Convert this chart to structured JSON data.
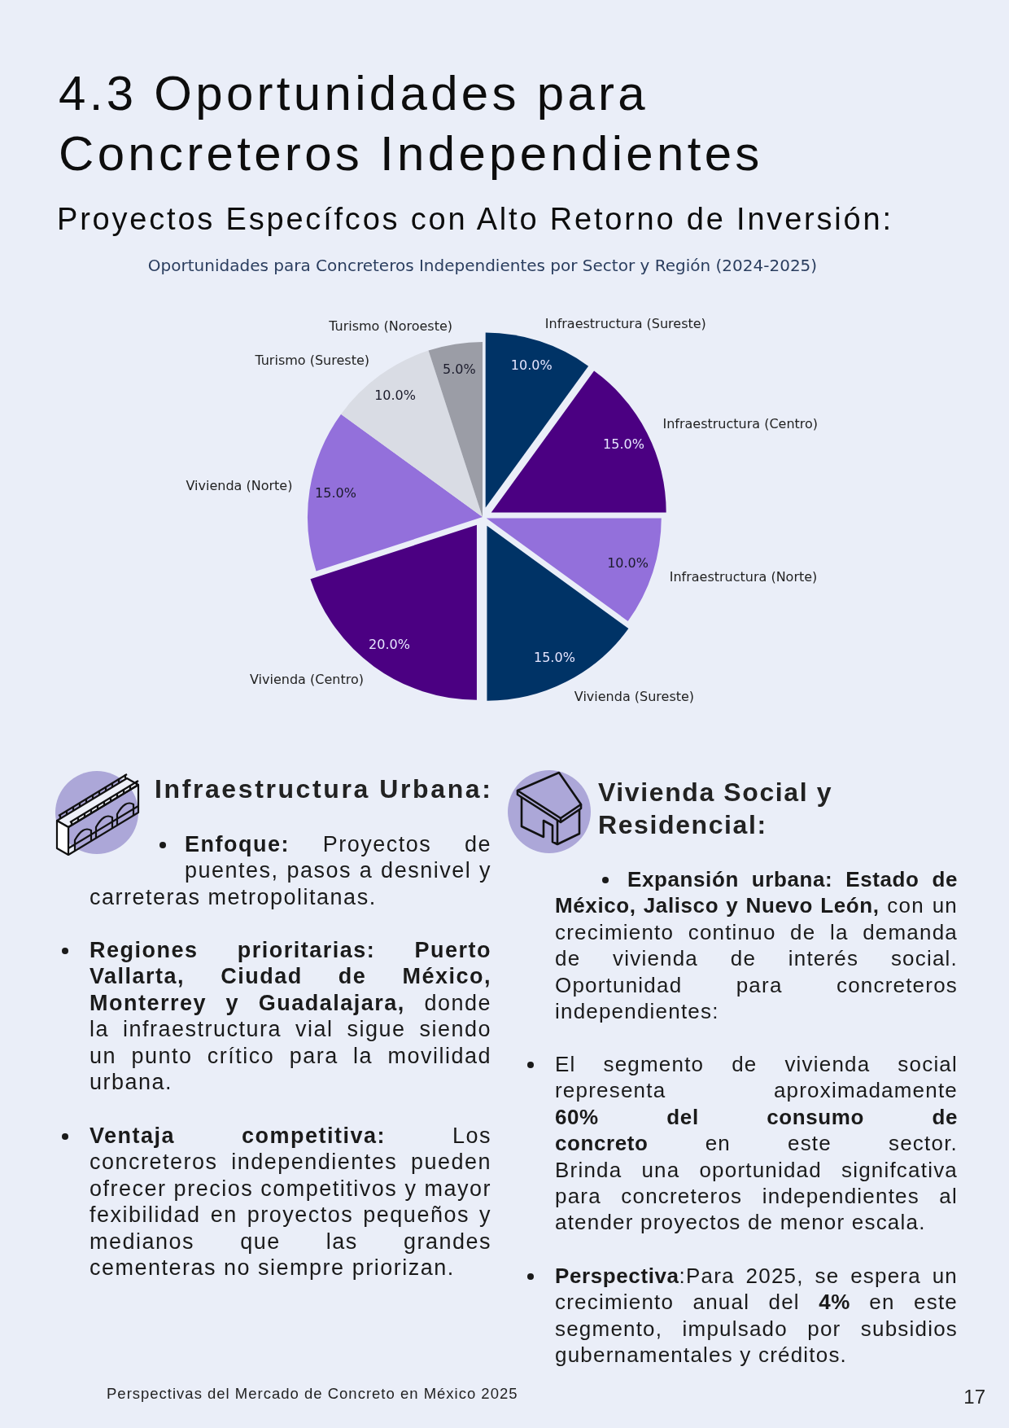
{
  "chart_data": {
    "type": "pie",
    "title": "Oportunidades para Concreteros Independientes por Sector y Región (2024-2025)",
    "categories": [
      "Infraestructura (Sureste)",
      "Infraestructura (Centro)",
      "Infraestructura (Norte)",
      "Vivienda (Sureste)",
      "Vivienda (Centro)",
      "Vivienda (Norte)",
      "Turismo (Sureste)",
      "Turismo (Noroeste)"
    ],
    "values": [
      10,
      15,
      10,
      15,
      20,
      15,
      10,
      5
    ],
    "colors": [
      "#003366",
      "#4b0082",
      "#9370db",
      "#003366",
      "#4b0082",
      "#9370db",
      "#d9dce4",
      "#9b9da6"
    ],
    "value_labels": [
      "10.0%",
      "15.0%",
      "10.0%",
      "15.0%",
      "20.0%",
      "15.0%",
      "10.0%",
      "5.0%"
    ],
    "annotations": [
      "4.3 Oportunidades para Concreteros Independientes",
      "Proyectos Específcos con Alto Retorno de Inversión:",
      "Infraestructura Urbana:",
      "Enfoque:",
      "Proyectos de",
      "puentes, pasos a desnivel y carreteras metropolitanas.",
      "Regiones prioritarias: Puerto Vallarta, Ciudad de México,",
      "Monterrey y Guadalajara,",
      "donde",
      "la infraestructura vial sigue siendo un punto crítico para la movilidad urbana.",
      "Ventaja competitiva:",
      "Los",
      "concreteros independientes pueden ofrecer precios competitivos y mayor fexibilidad en proyectos pequeños y medianos que las grandes cementeras no siempre priorizan.",
      "Vivienda Social y Residencial:",
      "Expansión urbana: Estado de",
      "México, Jalisco y Nuevo León,",
      "con un",
      "crecimiento continuo de la demanda de vivienda de interés social. Oportunidad para concreteros independientes:",
      "El segmento de vivienda social representa aproximadamente",
      "60% del consumo de",
      "concreto",
      "en este sector.",
      "Brinda una oportunidad signifcativa para concreteros independientes al atender proyectos de menor escala.",
      "Perspectiva",
      ":Para 2025, se espera un",
      "crecimiento anual del",
      "4%",
      "en este",
      "segmento, impulsado por subsidios gubernamentales y créditos.",
      "Perspectivas del Mercado de Concreto en México 2025",
      "17"
    ]
  }
}
